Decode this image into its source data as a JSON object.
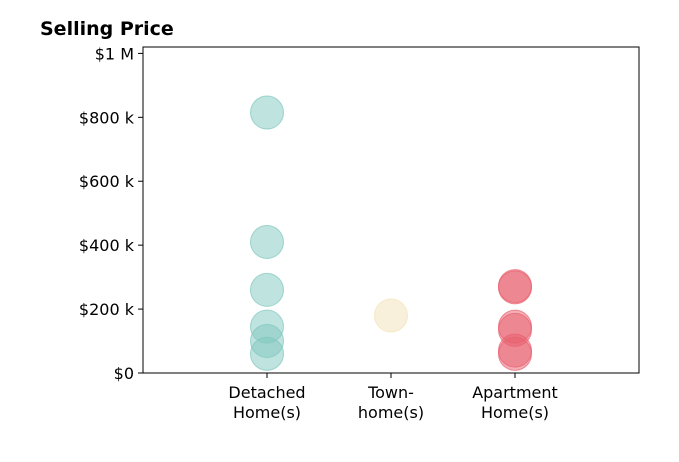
{
  "chart_data": {
    "type": "scatter",
    "title": "Selling Price",
    "xlabel": "",
    "ylabel": "",
    "categories": [
      [
        "Detached",
        "Home(s)"
      ],
      [
        "Town-",
        "home(s)"
      ],
      [
        "Apartment",
        "Home(s)"
      ]
    ],
    "yticks": [
      {
        "value": 0,
        "label": "$0"
      },
      {
        "value": 200000,
        "label": "$200 k"
      },
      {
        "value": 400000,
        "label": "$400 k"
      },
      {
        "value": 600000,
        "label": "$600 k"
      },
      {
        "value": 800000,
        "label": "$800 k"
      },
      {
        "value": 1000000,
        "label": "$1 M"
      }
    ],
    "ylim": [
      0,
      1020000
    ],
    "xlim": [
      -1,
      3
    ],
    "grid": false,
    "series": [
      {
        "category_index": 0,
        "color": "#7fc8bd",
        "values": [
          815000,
          410000,
          260000,
          145000,
          100000,
          60000
        ]
      },
      {
        "category_index": 1,
        "color": "#f4e2b8",
        "values": [
          180000
        ]
      },
      {
        "category_index": 2,
        "color": "#e8606e",
        "values": [
          272000,
          268000,
          145000,
          135000,
          70000,
          60000
        ]
      }
    ]
  }
}
